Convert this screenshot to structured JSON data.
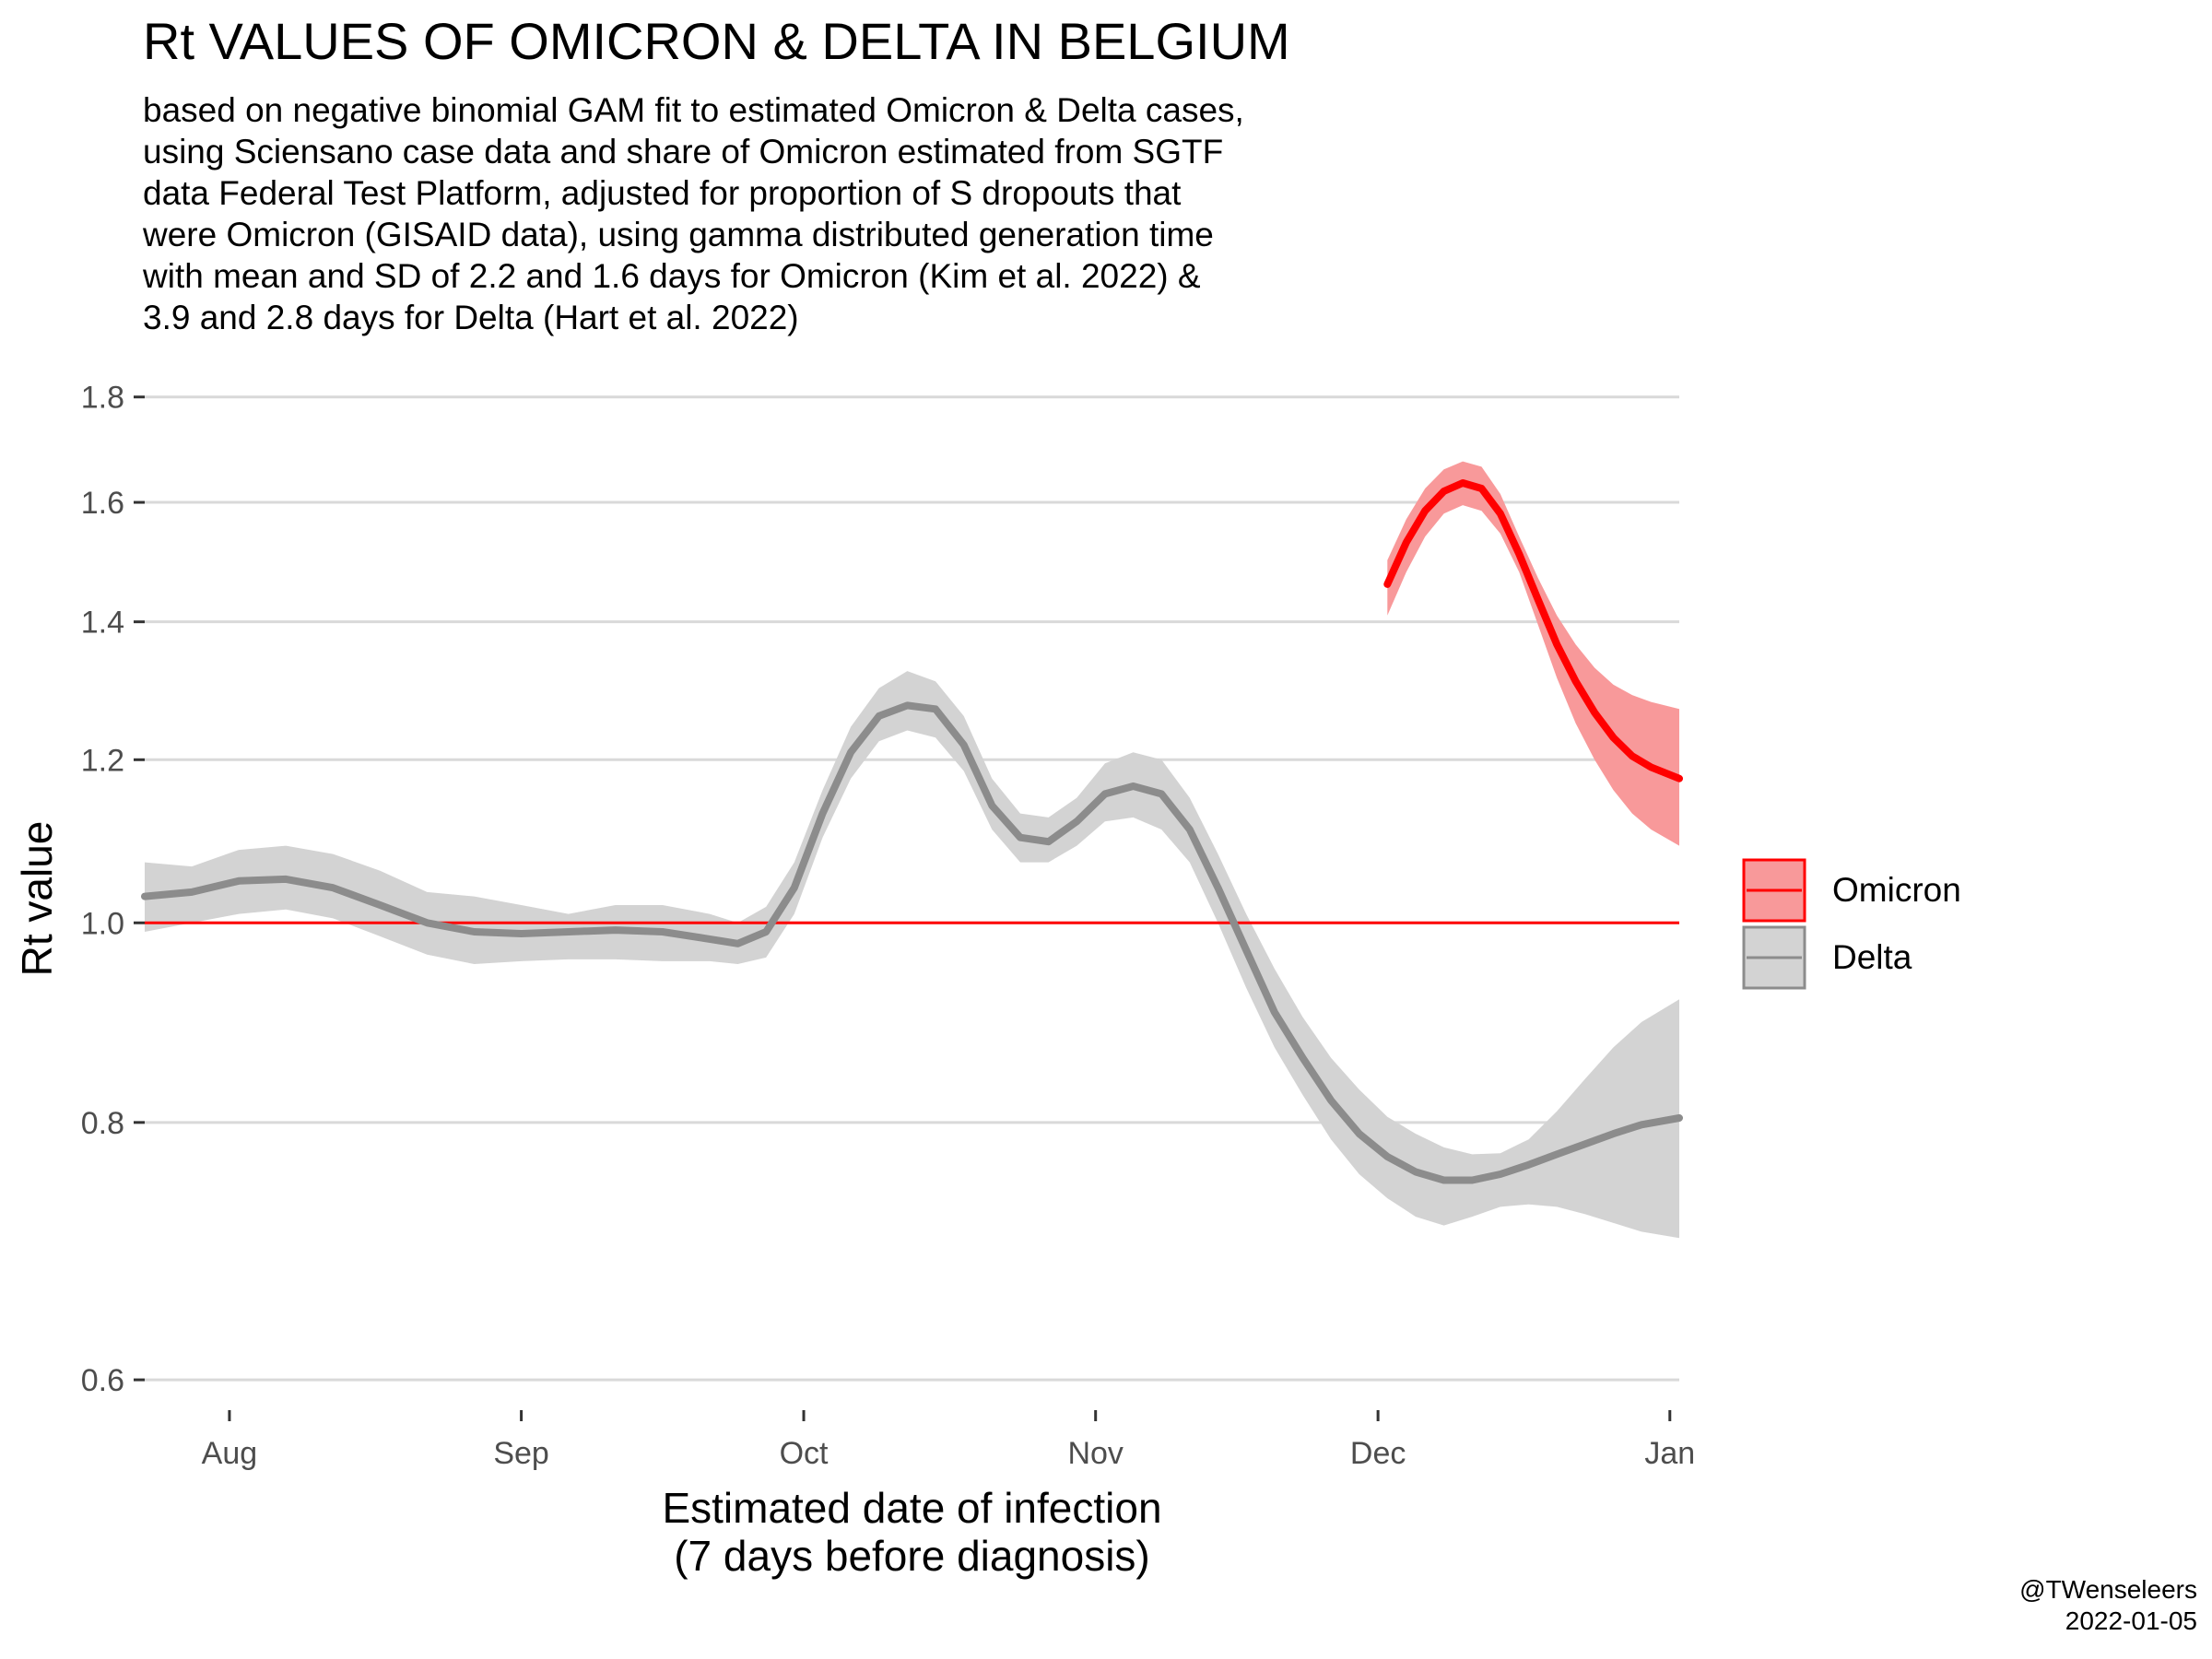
{
  "title": "Rt VALUES OF OMICRON & DELTA IN BELGIUM",
  "subtitle_lines": [
    "based on negative binomial GAM fit to estimated Omicron & Delta cases,",
    "using Sciensano case data and share of Omicron estimated from SGTF",
    "data Federal Test Platform, adjusted for proportion of S dropouts that",
    "were Omicron (GISAID data), using gamma distributed generation time",
    "with mean and SD of 2.2 and 1.6 days for Omicron (Kim et al. 2022) &",
    "3.9 and 2.8 days for Delta (Hart et al. 2022)"
  ],
  "caption": {
    "handle": "@TWenseleers",
    "date": "2022-01-05"
  },
  "colors": {
    "omicron_line": "#ff0000",
    "omicron_band": "#f8999a",
    "delta_line": "#8c8c8c",
    "delta_band": "#d3d3d3",
    "grid": "#d9d9d9",
    "reference_line": "#ff0000"
  },
  "chart_data": {
    "type": "line",
    "title": "Rt VALUES OF OMICRON & DELTA IN BELGIUM",
    "xlabel_lines": [
      "Estimated date of infection",
      "(7 days before diagnosis)"
    ],
    "ylabel": "Rt value",
    "y_scale": "log",
    "ylim": [
      0.58,
      1.82
    ],
    "xlim": [
      "2021-07-23",
      "2022-01-02"
    ],
    "x_ticks": [
      {
        "date": "2021-08-01",
        "label": "Aug"
      },
      {
        "date": "2021-09-01",
        "label": "Sep"
      },
      {
        "date": "2021-10-01",
        "label": "Oct"
      },
      {
        "date": "2021-11-01",
        "label": "Nov"
      },
      {
        "date": "2021-12-01",
        "label": "Dec"
      },
      {
        "date": "2022-01-01",
        "label": "Jan"
      }
    ],
    "y_ticks": [
      {
        "value": 0.6,
        "label": "0.6"
      },
      {
        "value": 0.8,
        "label": "0.8"
      },
      {
        "value": 1.0,
        "label": "1.0"
      },
      {
        "value": 1.2,
        "label": "1.2"
      },
      {
        "value": 1.4,
        "label": "1.4"
      },
      {
        "value": 1.6,
        "label": "1.6"
      },
      {
        "value": 1.8,
        "label": "1.8"
      }
    ],
    "reference_line": 1.0,
    "grid": "horizontal",
    "legend_position": "right",
    "series": [
      {
        "name": "Delta",
        "points": [
          {
            "x": "2021-07-23",
            "y": 1.03,
            "lo": 0.99,
            "hi": 1.07
          },
          {
            "x": "2021-07-28",
            "y": 1.035,
            "lo": 1.0,
            "hi": 1.065
          },
          {
            "x": "2021-08-02",
            "y": 1.048,
            "lo": 1.01,
            "hi": 1.085
          },
          {
            "x": "2021-08-07",
            "y": 1.05,
            "lo": 1.015,
            "hi": 1.09
          },
          {
            "x": "2021-08-12",
            "y": 1.04,
            "lo": 1.005,
            "hi": 1.08
          },
          {
            "x": "2021-08-17",
            "y": 1.02,
            "lo": 0.985,
            "hi": 1.06
          },
          {
            "x": "2021-08-22",
            "y": 1.0,
            "lo": 0.965,
            "hi": 1.035
          },
          {
            "x": "2021-08-27",
            "y": 0.99,
            "lo": 0.955,
            "hi": 1.03
          },
          {
            "x": "2021-09-01",
            "y": 0.988,
            "lo": 0.958,
            "hi": 1.02
          },
          {
            "x": "2021-09-06",
            "y": 0.99,
            "lo": 0.96,
            "hi": 1.01
          },
          {
            "x": "2021-09-11",
            "y": 0.992,
            "lo": 0.96,
            "hi": 1.02
          },
          {
            "x": "2021-09-16",
            "y": 0.99,
            "lo": 0.958,
            "hi": 1.02
          },
          {
            "x": "2021-09-21",
            "y": 0.982,
            "lo": 0.958,
            "hi": 1.01
          },
          {
            "x": "2021-09-24",
            "y": 0.977,
            "lo": 0.955,
            "hi": 1.0
          },
          {
            "x": "2021-09-27",
            "y": 0.99,
            "lo": 0.962,
            "hi": 1.018
          },
          {
            "x": "2021-09-30",
            "y": 1.04,
            "lo": 1.01,
            "hi": 1.07
          },
          {
            "x": "2021-10-03",
            "y": 1.13,
            "lo": 1.1,
            "hi": 1.16
          },
          {
            "x": "2021-10-06",
            "y": 1.21,
            "lo": 1.175,
            "hi": 1.245
          },
          {
            "x": "2021-10-09",
            "y": 1.26,
            "lo": 1.225,
            "hi": 1.3
          },
          {
            "x": "2021-10-12",
            "y": 1.275,
            "lo": 1.24,
            "hi": 1.325
          },
          {
            "x": "2021-10-15",
            "y": 1.27,
            "lo": 1.23,
            "hi": 1.31
          },
          {
            "x": "2021-10-18",
            "y": 1.22,
            "lo": 1.185,
            "hi": 1.26
          },
          {
            "x": "2021-10-21",
            "y": 1.14,
            "lo": 1.11,
            "hi": 1.175
          },
          {
            "x": "2021-10-24",
            "y": 1.1,
            "lo": 1.07,
            "hi": 1.13
          },
          {
            "x": "2021-10-27",
            "y": 1.095,
            "lo": 1.07,
            "hi": 1.125
          },
          {
            "x": "2021-10-30",
            "y": 1.12,
            "lo": 1.09,
            "hi": 1.15
          },
          {
            "x": "2021-11-02",
            "y": 1.155,
            "lo": 1.12,
            "hi": 1.195
          },
          {
            "x": "2021-11-05",
            "y": 1.165,
            "lo": 1.125,
            "hi": 1.21
          },
          {
            "x": "2021-11-08",
            "y": 1.155,
            "lo": 1.11,
            "hi": 1.2
          },
          {
            "x": "2021-11-11",
            "y": 1.11,
            "lo": 1.07,
            "hi": 1.15
          },
          {
            "x": "2021-11-14",
            "y": 1.04,
            "lo": 1.0,
            "hi": 1.08
          },
          {
            "x": "2021-11-17",
            "y": 0.97,
            "lo": 0.93,
            "hi": 1.01
          },
          {
            "x": "2021-11-20",
            "y": 0.905,
            "lo": 0.87,
            "hi": 0.95
          },
          {
            "x": "2021-11-23",
            "y": 0.86,
            "lo": 0.825,
            "hi": 0.9
          },
          {
            "x": "2021-11-26",
            "y": 0.82,
            "lo": 0.785,
            "hi": 0.86
          },
          {
            "x": "2021-11-29",
            "y": 0.79,
            "lo": 0.755,
            "hi": 0.83
          },
          {
            "x": "2021-12-02",
            "y": 0.77,
            "lo": 0.735,
            "hi": 0.805
          },
          {
            "x": "2021-12-05",
            "y": 0.757,
            "lo": 0.72,
            "hi": 0.79
          },
          {
            "x": "2021-12-08",
            "y": 0.75,
            "lo": 0.713,
            "hi": 0.778
          },
          {
            "x": "2021-12-11",
            "y": 0.75,
            "lo": 0.72,
            "hi": 0.772
          },
          {
            "x": "2021-12-14",
            "y": 0.755,
            "lo": 0.728,
            "hi": 0.773
          },
          {
            "x": "2021-12-17",
            "y": 0.763,
            "lo": 0.73,
            "hi": 0.785
          },
          {
            "x": "2021-12-20",
            "y": 0.772,
            "lo": 0.728,
            "hi": 0.81
          },
          {
            "x": "2021-12-23",
            "y": 0.781,
            "lo": 0.722,
            "hi": 0.84
          },
          {
            "x": "2021-12-26",
            "y": 0.79,
            "lo": 0.715,
            "hi": 0.87
          },
          {
            "x": "2021-12-29",
            "y": 0.798,
            "lo": 0.708,
            "hi": 0.895
          },
          {
            "x": "2022-01-02",
            "y": 0.804,
            "lo": 0.703,
            "hi": 0.918
          }
        ]
      },
      {
        "name": "Omicron",
        "points": [
          {
            "x": "2021-12-02",
            "y": 1.46,
            "lo": 1.41,
            "hi": 1.5
          },
          {
            "x": "2021-12-04",
            "y": 1.53,
            "lo": 1.48,
            "hi": 1.57
          },
          {
            "x": "2021-12-06",
            "y": 1.585,
            "lo": 1.54,
            "hi": 1.625
          },
          {
            "x": "2021-12-08",
            "y": 1.62,
            "lo": 1.58,
            "hi": 1.66
          },
          {
            "x": "2021-12-10",
            "y": 1.635,
            "lo": 1.595,
            "hi": 1.675
          },
          {
            "x": "2021-12-12",
            "y": 1.625,
            "lo": 1.585,
            "hi": 1.665
          },
          {
            "x": "2021-12-14",
            "y": 1.58,
            "lo": 1.545,
            "hi": 1.615
          },
          {
            "x": "2021-12-16",
            "y": 1.51,
            "lo": 1.48,
            "hi": 1.54
          },
          {
            "x": "2021-12-18",
            "y": 1.435,
            "lo": 1.395,
            "hi": 1.47
          },
          {
            "x": "2021-12-20",
            "y": 1.365,
            "lo": 1.315,
            "hi": 1.41
          },
          {
            "x": "2021-12-22",
            "y": 1.31,
            "lo": 1.25,
            "hi": 1.365
          },
          {
            "x": "2021-12-24",
            "y": 1.265,
            "lo": 1.2,
            "hi": 1.33
          },
          {
            "x": "2021-12-26",
            "y": 1.23,
            "lo": 1.16,
            "hi": 1.305
          },
          {
            "x": "2021-12-28",
            "y": 1.205,
            "lo": 1.13,
            "hi": 1.29
          },
          {
            "x": "2021-12-30",
            "y": 1.19,
            "lo": 1.11,
            "hi": 1.28
          },
          {
            "x": "2022-01-02",
            "y": 1.175,
            "lo": 1.09,
            "hi": 1.27
          }
        ]
      }
    ]
  }
}
